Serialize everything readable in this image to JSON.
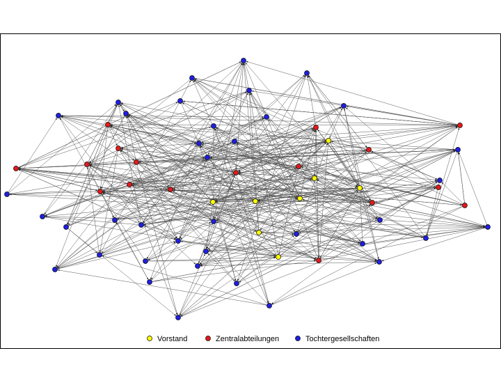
{
  "legend": [
    {
      "label": "Vorstand",
      "color": "#ffff00"
    },
    {
      "label": "Zentralabteilungen",
      "color": "#e31a1c"
    },
    {
      "label": "Tochtergesellschaften",
      "color": "#1f1fe0"
    }
  ]
}
